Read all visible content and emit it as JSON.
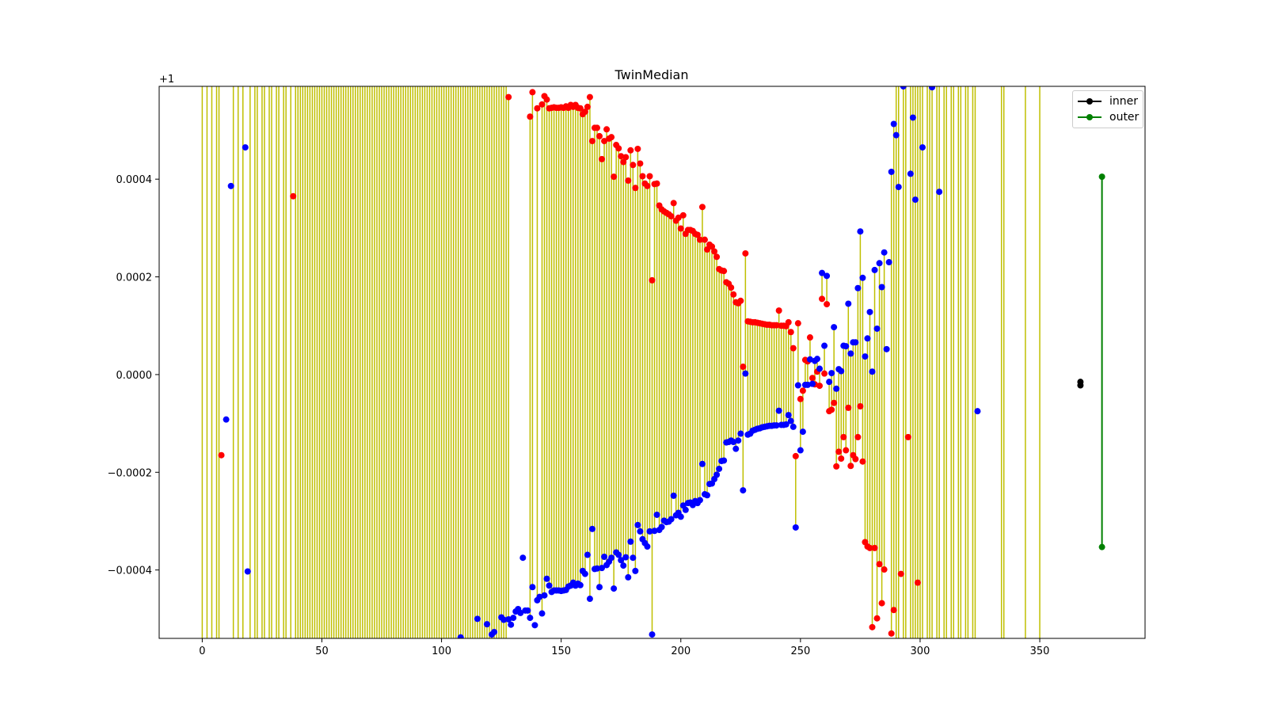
{
  "chart_data": {
    "type": "scatter",
    "title": "TwinMedian",
    "offset_label": "+1",
    "xlabel": "",
    "ylabel": "",
    "xlim": [
      -18,
      394
    ],
    "ylim": [
      -0.00054,
      0.00059
    ],
    "xticks": [
      0,
      50,
      100,
      150,
      200,
      250,
      300,
      350
    ],
    "yticks": [
      -0.0004,
      -0.0002,
      0.0,
      0.0002,
      0.0004
    ],
    "ytick_labels": [
      "−0.0004",
      "−0.0002",
      "0.0000",
      "0.0002",
      "0.0004"
    ],
    "grid": false,
    "legend": {
      "position": "top-right",
      "entries": [
        {
          "name": "inner",
          "color": "#000000"
        },
        {
          "name": "outer",
          "color": "#008000"
        }
      ]
    },
    "colors": {
      "lower": "#0000ff",
      "upper": "#ff0000",
      "stem": "#bfbf00",
      "inner": "#000000",
      "outer": "#008000"
    },
    "upper_points": [
      [
        8,
        -0.000165
      ],
      [
        38,
        0.000365
      ],
      [
        128,
        0.000568
      ],
      [
        137,
        0.000528
      ],
      [
        138,
        0.000578
      ],
      [
        140,
        0.000545
      ],
      [
        142,
        0.000553
      ],
      [
        143,
        0.00057
      ],
      [
        144,
        0.000563
      ],
      [
        145,
        0.000545
      ],
      [
        146,
        0.000546
      ],
      [
        147,
        0.000547
      ],
      [
        148,
        0.000546
      ],
      [
        149,
        0.000546
      ],
      [
        150,
        0.000547
      ],
      [
        151,
        0.000546
      ],
      [
        152,
        0.000549
      ],
      [
        153,
        0.000546
      ],
      [
        154,
        0.000552
      ],
      [
        155,
        0.000548
      ],
      [
        156,
        0.000552
      ],
      [
        157,
        0.000546
      ],
      [
        158,
        0.000545
      ],
      [
        159,
        0.000533
      ],
      [
        160,
        0.000538
      ],
      [
        161,
        0.000548
      ],
      [
        162,
        0.000568
      ],
      [
        163,
        0.000478
      ],
      [
        164,
        0.000505
      ],
      [
        165,
        0.000505
      ],
      [
        166,
        0.000488
      ],
      [
        167,
        0.000441
      ],
      [
        168,
        0.000478
      ],
      [
        169,
        0.000502
      ],
      [
        170,
        0.000483
      ],
      [
        171,
        0.000486
      ],
      [
        172,
        0.000405
      ],
      [
        173,
        0.00047
      ],
      [
        174,
        0.000463
      ],
      [
        175,
        0.000447
      ],
      [
        176,
        0.000435
      ],
      [
        177,
        0.000445
      ],
      [
        178,
        0.000397
      ],
      [
        179,
        0.000459
      ],
      [
        180,
        0.000429
      ],
      [
        181,
        0.000382
      ],
      [
        182,
        0.000462
      ],
      [
        183,
        0.000432
      ],
      [
        184,
        0.000406
      ],
      [
        185,
        0.000391
      ],
      [
        186,
        0.000386
      ],
      [
        187,
        0.000406
      ],
      [
        188,
        0.000193
      ],
      [
        189,
        0.00039
      ],
      [
        190,
        0.000391
      ],
      [
        191,
        0.000346
      ],
      [
        192,
        0.000338
      ],
      [
        193,
        0.000334
      ],
      [
        194,
        0.000331
      ],
      [
        195,
        0.000328
      ],
      [
        196,
        0.000324
      ],
      [
        197,
        0.000351
      ],
      [
        198,
        0.000315
      ],
      [
        199,
        0.000321
      ],
      [
        200,
        0.000299
      ],
      [
        201,
        0.000326
      ],
      [
        202,
        0.000288
      ],
      [
        203,
        0.000296
      ],
      [
        204,
        0.000296
      ],
      [
        205,
        0.000294
      ],
      [
        206,
        0.000288
      ],
      [
        207,
        0.000286
      ],
      [
        208,
        0.000276
      ],
      [
        209,
        0.000343
      ],
      [
        210,
        0.000276
      ],
      [
        211,
        0.000256
      ],
      [
        212,
        0.000266
      ],
      [
        213,
        0.000262
      ],
      [
        214,
        0.000252
      ],
      [
        215,
        0.000241
      ],
      [
        216,
        0.000216
      ],
      [
        217,
        0.000213
      ],
      [
        218,
        0.000212
      ],
      [
        219,
        0.000189
      ],
      [
        220,
        0.000186
      ],
      [
        221,
        0.000178
      ],
      [
        222,
        0.000164
      ],
      [
        223,
        0.000148
      ],
      [
        224,
        0.000146
      ],
      [
        225,
        0.000151
      ],
      [
        226,
        1.6e-05
      ],
      [
        227,
        0.000248
      ],
      [
        228,
        0.000109
      ],
      [
        229,
        0.000108
      ],
      [
        230,
        0.000107
      ],
      [
        231,
        0.000107
      ],
      [
        232,
        0.000106
      ],
      [
        233,
        0.000105
      ],
      [
        234,
        0.000104
      ],
      [
        235,
        0.000103
      ],
      [
        236,
        0.000102
      ],
      [
        237,
        0.000102
      ],
      [
        238,
        0.000101
      ],
      [
        239,
        0.000101
      ],
      [
        240,
        0.000101
      ],
      [
        241,
        0.000131
      ],
      [
        242,
        0.0001
      ],
      [
        243,
        0.0001
      ],
      [
        244,
        9.9e-05
      ],
      [
        245,
        0.000107
      ],
      [
        246,
        8.7e-05
      ],
      [
        247,
        5.4e-05
      ],
      [
        248,
        -0.000167
      ],
      [
        249,
        0.000105
      ],
      [
        250,
        -5e-05
      ],
      [
        251,
        -3.3e-05
      ],
      [
        252,
        3e-05
      ],
      [
        253,
        2.7e-05
      ],
      [
        254,
        7.6e-05
      ],
      [
        255,
        -7e-06
      ],
      [
        256,
        -2e-05
      ],
      [
        257,
        6e-06
      ],
      [
        258,
        -2.3e-05
      ],
      [
        259,
        0.000155
      ],
      [
        260,
        2e-06
      ],
      [
        261,
        0.000144
      ],
      [
        262,
        -7.5e-05
      ],
      [
        263,
        -7.2e-05
      ],
      [
        264,
        -5.8e-05
      ],
      [
        265,
        -0.000188
      ],
      [
        266,
        -0.000158
      ],
      [
        267,
        -0.000172
      ],
      [
        268,
        -0.000128
      ],
      [
        269,
        -0.000155
      ],
      [
        270,
        -6.8e-05
      ],
      [
        271,
        -0.000187
      ],
      [
        272,
        -0.000165
      ],
      [
        273,
        -0.000173
      ],
      [
        274,
        -0.000128
      ],
      [
        275,
        -6.5e-05
      ],
      [
        276,
        -0.000178
      ],
      [
        277,
        -0.000343
      ],
      [
        278,
        -0.000352
      ],
      [
        279,
        -0.000355
      ],
      [
        280,
        -0.000517
      ],
      [
        281,
        -0.000355
      ],
      [
        282,
        -0.000499
      ],
      [
        283,
        -0.000388
      ],
      [
        284,
        -0.000468
      ],
      [
        285,
        -0.000399
      ],
      [
        288,
        -0.00053
      ],
      [
        289,
        -0.000482
      ],
      [
        292,
        -0.000408
      ],
      [
        295,
        -0.000128
      ],
      [
        299,
        -0.000426
      ]
    ],
    "lower_points": [
      [
        10,
        -9.2e-05
      ],
      [
        12,
        0.000386
      ],
      [
        18,
        0.000465
      ],
      [
        19,
        -0.000403
      ],
      [
        108,
        -0.000538
      ],
      [
        115,
        -0.0005
      ],
      [
        119,
        -0.000511
      ],
      [
        121,
        -0.000532
      ],
      [
        122,
        -0.000527
      ],
      [
        125,
        -0.000497
      ],
      [
        126,
        -0.000502
      ],
      [
        128,
        -0.000501
      ],
      [
        129,
        -0.000512
      ],
      [
        130,
        -0.000498
      ],
      [
        131,
        -0.000485
      ],
      [
        132,
        -0.00048
      ],
      [
        133,
        -0.000488
      ],
      [
        134,
        -0.000375
      ],
      [
        135,
        -0.000483
      ],
      [
        136,
        -0.000483
      ],
      [
        137,
        -0.000498
      ],
      [
        138,
        -0.000435
      ],
      [
        139,
        -0.000513
      ],
      [
        140,
        -0.000462
      ],
      [
        141,
        -0.000455
      ],
      [
        142,
        -0.000489
      ],
      [
        143,
        -0.000452
      ],
      [
        144,
        -0.000418
      ],
      [
        145,
        -0.000432
      ],
      [
        146,
        -0.000445
      ],
      [
        147,
        -0.000442
      ],
      [
        148,
        -0.000442
      ],
      [
        149,
        -0.000442
      ],
      [
        150,
        -0.000443
      ],
      [
        151,
        -0.000442
      ],
      [
        152,
        -0.000441
      ],
      [
        153,
        -0.000434
      ],
      [
        154,
        -0.000432
      ],
      [
        155,
        -0.000426
      ],
      [
        156,
        -0.000432
      ],
      [
        157,
        -0.000428
      ],
      [
        158,
        -0.000431
      ],
      [
        159,
        -0.000402
      ],
      [
        160,
        -0.000408
      ],
      [
        161,
        -0.000369
      ],
      [
        162,
        -0.000459
      ],
      [
        163,
        -0.000316
      ],
      [
        164,
        -0.000398
      ],
      [
        165,
        -0.000397
      ],
      [
        166,
        -0.000435
      ],
      [
        167,
        -0.000396
      ],
      [
        168,
        -0.000373
      ],
      [
        169,
        -0.00039
      ],
      [
        170,
        -0.000383
      ],
      [
        171,
        -0.000375
      ],
      [
        172,
        -0.000438
      ],
      [
        173,
        -0.000364
      ],
      [
        174,
        -0.000369
      ],
      [
        175,
        -0.00038
      ],
      [
        176,
        -0.000391
      ],
      [
        177,
        -0.000374
      ],
      [
        178,
        -0.000415
      ],
      [
        179,
        -0.000342
      ],
      [
        180,
        -0.000375
      ],
      [
        181,
        -0.000402
      ],
      [
        182,
        -0.000308
      ],
      [
        183,
        -0.000321
      ],
      [
        184,
        -0.000337
      ],
      [
        185,
        -0.000345
      ],
      [
        186,
        -0.000352
      ],
      [
        187,
        -0.000321
      ],
      [
        188,
        -0.000532
      ],
      [
        189,
        -0.00032
      ],
      [
        190,
        -0.000287
      ],
      [
        191,
        -0.000318
      ],
      [
        192,
        -0.000312
      ],
      [
        193,
        -0.000299
      ],
      [
        194,
        -0.000302
      ],
      [
        195,
        -0.000301
      ],
      [
        196,
        -0.000296
      ],
      [
        197,
        -0.000248
      ],
      [
        198,
        -0.000288
      ],
      [
        199,
        -0.000283
      ],
      [
        200,
        -0.000291
      ],
      [
        201,
        -0.000268
      ],
      [
        202,
        -0.000277
      ],
      [
        203,
        -0.000263
      ],
      [
        204,
        -0.000262
      ],
      [
        205,
        -0.000267
      ],
      [
        206,
        -0.000259
      ],
      [
        207,
        -0.000263
      ],
      [
        208,
        -0.000257
      ],
      [
        209,
        -0.000183
      ],
      [
        210,
        -0.000245
      ],
      [
        211,
        -0.000247
      ],
      [
        212,
        -0.000224
      ],
      [
        213,
        -0.000223
      ],
      [
        214,
        -0.000214
      ],
      [
        215,
        -0.000205
      ],
      [
        216,
        -0.000193
      ],
      [
        217,
        -0.000177
      ],
      [
        218,
        -0.000176
      ],
      [
        219,
        -0.000139
      ],
      [
        220,
        -0.000138
      ],
      [
        221,
        -0.000135
      ],
      [
        222,
        -0.000138
      ],
      [
        223,
        -0.000152
      ],
      [
        224,
        -0.000135
      ],
      [
        225,
        -0.000121
      ],
      [
        226,
        -0.000237
      ],
      [
        227,
        2e-06
      ],
      [
        228,
        -0.000123
      ],
      [
        229,
        -0.000121
      ],
      [
        230,
        -0.000115
      ],
      [
        231,
        -0.000113
      ],
      [
        232,
        -0.000111
      ],
      [
        233,
        -0.00011
      ],
      [
        234,
        -0.000108
      ],
      [
        235,
        -0.000107
      ],
      [
        236,
        -0.000106
      ],
      [
        237,
        -0.000105
      ],
      [
        238,
        -0.000105
      ],
      [
        239,
        -0.000104
      ],
      [
        240,
        -0.000104
      ],
      [
        241,
        -7.4e-05
      ],
      [
        242,
        -0.000103
      ],
      [
        243,
        -0.000103
      ],
      [
        244,
        -0.000102
      ],
      [
        245,
        -8.3e-05
      ],
      [
        246,
        -9.5e-05
      ],
      [
        247,
        -0.000107
      ],
      [
        248,
        -0.000313
      ],
      [
        249,
        -2.2e-05
      ],
      [
        250,
        -0.000155
      ],
      [
        251,
        -0.000117
      ],
      [
        252,
        -2.1e-05
      ],
      [
        253,
        -2.1e-05
      ],
      [
        254,
        3.1e-05
      ],
      [
        255,
        -1.9e-05
      ],
      [
        256,
        2.8e-05
      ],
      [
        257,
        3.2e-05
      ],
      [
        258,
        1.2e-05
      ],
      [
        259,
        0.000208
      ],
      [
        260,
        5.9e-05
      ],
      [
        261,
        0.000202
      ],
      [
        262,
        -1.5e-05
      ],
      [
        263,
        3e-06
      ],
      [
        264,
        9.7e-05
      ],
      [
        265,
        -2.9e-05
      ],
      [
        266,
        1.1e-05
      ],
      [
        267,
        7e-06
      ],
      [
        268,
        5.9e-05
      ],
      [
        269,
        5.8e-05
      ],
      [
        270,
        0.000145
      ],
      [
        271,
        4.3e-05
      ],
      [
        272,
        6.6e-05
      ],
      [
        273,
        6.6e-05
      ],
      [
        274,
        0.000177
      ],
      [
        275,
        0.000293
      ],
      [
        276,
        0.000198
      ],
      [
        277,
        3.7e-05
      ],
      [
        278,
        7.4e-05
      ],
      [
        279,
        0.000128
      ],
      [
        280,
        6e-06
      ],
      [
        281,
        0.000214
      ],
      [
        282,
        9.4e-05
      ],
      [
        283,
        0.000228
      ],
      [
        284,
        0.000179
      ],
      [
        285,
        0.00025
      ],
      [
        286,
        5.2e-05
      ],
      [
        287,
        0.00023
      ],
      [
        288,
        0.000415
      ],
      [
        289,
        0.000513
      ],
      [
        290,
        0.00049
      ],
      [
        291,
        0.000384
      ],
      [
        293,
        0.00059
      ],
      [
        296,
        0.000411
      ],
      [
        297,
        0.000526
      ],
      [
        298,
        0.000358
      ],
      [
        301,
        0.000465
      ],
      [
        305,
        0.000588
      ],
      [
        308,
        0.000374
      ],
      [
        324,
        -7.5e-05
      ]
    ],
    "stems_full_height": {
      "x_ranges": [
        [
          0,
          7
        ],
        [
          13,
          17
        ],
        [
          20,
          37
        ],
        [
          39,
          127
        ],
        [
          290,
          350
        ]
      ],
      "excluded_x": [
        1,
        3,
        5,
        9,
        11,
        14,
        16,
        19,
        21,
        24,
        27,
        30,
        33,
        36,
        292,
        295,
        302,
        306,
        309,
        312,
        315,
        318,
        321,
        324,
        325,
        326,
        327,
        328,
        329,
        330,
        331,
        332,
        333,
        336,
        337,
        338,
        339,
        340,
        341,
        342,
        343,
        345,
        346,
        347,
        348,
        349
      ]
    },
    "inner": {
      "x": 367,
      "values": [
        -1.5e-05,
        -2.2e-05
      ]
    },
    "outer": {
      "x": 376,
      "values": [
        0.000405,
        -0.000353
      ]
    }
  }
}
